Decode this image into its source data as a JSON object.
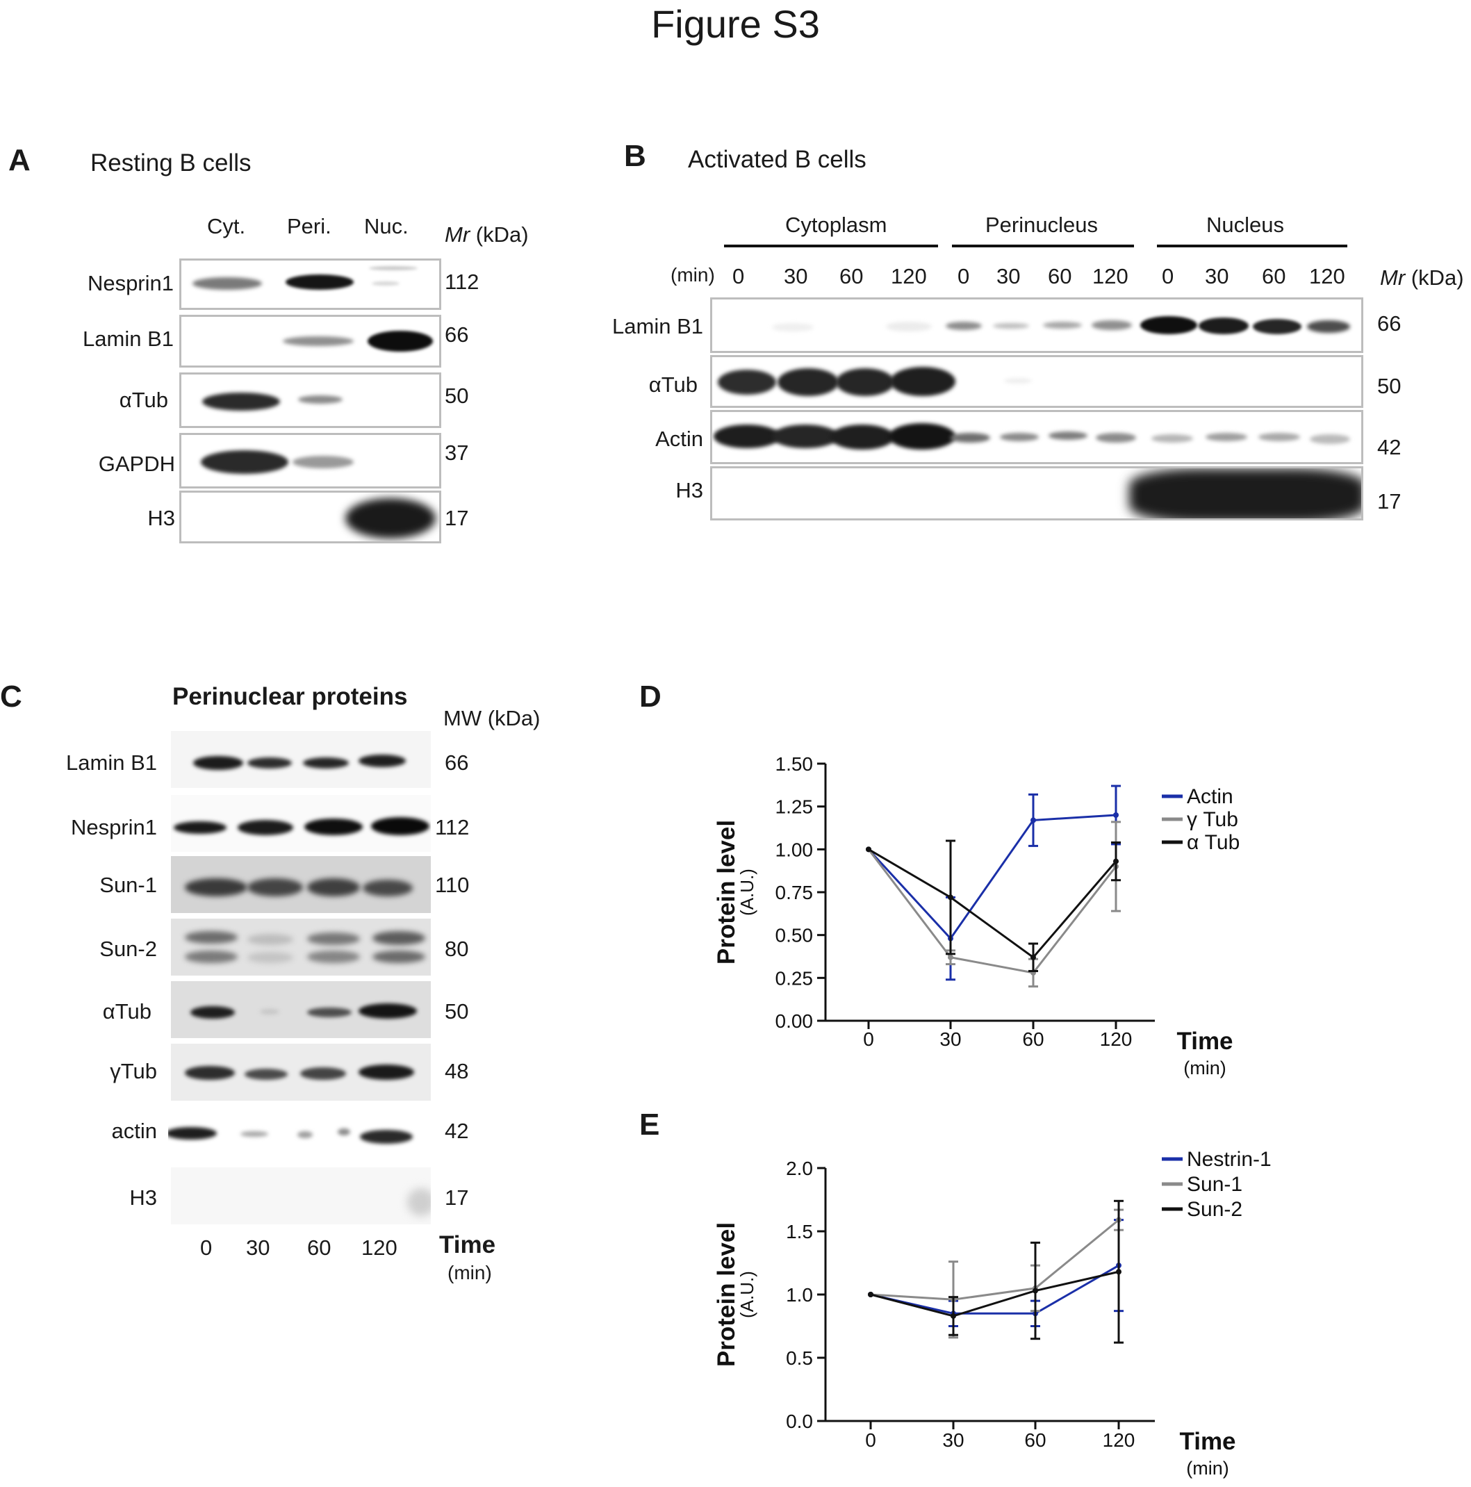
{
  "figure_title": "Figure S3",
  "panel_a": {
    "letter": "A",
    "title": "Resting B cells",
    "columns": [
      "Cyt.",
      "Peri.",
      "Nuc."
    ],
    "mr_label_italic": "Mr",
    "mr_label_unit": " (kDa)",
    "rows": [
      {
        "protein": "Nesprin1",
        "mw": "112"
      },
      {
        "protein": "Lamin B1",
        "mw": "66"
      },
      {
        "protein": "αTub",
        "mw": "50"
      },
      {
        "protein": "GAPDH",
        "mw": "37"
      },
      {
        "protein": "H3",
        "mw": "17"
      }
    ]
  },
  "panel_b": {
    "letter": "B",
    "title": "Activated B cells",
    "groups": [
      "Cytoplasm",
      "Perinucleus",
      "Nucleus"
    ],
    "time_unit": "(min)",
    "times": [
      "0",
      "30",
      "60",
      "120",
      "0",
      "30",
      "60",
      "120",
      "0",
      "30",
      "60",
      "120"
    ],
    "mr_label_italic": "Mr",
    "mr_label_unit": " (kDa)",
    "rows": [
      {
        "protein": "Lamin B1",
        "mw": "66"
      },
      {
        "protein": "αTub",
        "mw": "50"
      },
      {
        "protein": "Actin",
        "mw": "42"
      },
      {
        "protein": "H3",
        "mw": "17"
      }
    ]
  },
  "panel_c": {
    "letter": "C",
    "title": "Perinuclear proteins",
    "mw_label": "MW (kDa)",
    "rows": [
      {
        "protein": "Lamin B1",
        "mw": "66"
      },
      {
        "protein": "Nesprin1",
        "mw": "112"
      },
      {
        "protein": "Sun-1",
        "mw": "110"
      },
      {
        "protein": "Sun-2",
        "mw": "80"
      },
      {
        "protein": "αTub",
        "mw": "50"
      },
      {
        "protein": "γTub",
        "mw": "48"
      },
      {
        "protein": "actin",
        "mw": "42"
      },
      {
        "protein": "H3",
        "mw": "17"
      }
    ],
    "times": [
      "0",
      "30",
      "60",
      "120"
    ],
    "time_label": "Time",
    "time_unit": "(min)"
  },
  "chart_data": [
    {
      "panel": "D",
      "type": "line",
      "ylabel": "Protein level",
      "ylabel_unit": "(A.U.)",
      "xlabel": "Time",
      "xlabel_unit": "(min)",
      "x": [
        0,
        30,
        60,
        120
      ],
      "x_tick_labels": [
        "0",
        "30",
        "60",
        "120"
      ],
      "ylim": [
        0,
        1.5
      ],
      "y_ticks": [
        0.0,
        0.25,
        0.5,
        0.75,
        1.0,
        1.25,
        1.5
      ],
      "y_tick_labels": [
        "0.00",
        "0.25",
        "0.50",
        "0.75",
        "1.00",
        "1.25",
        "1.50"
      ],
      "legend_position": "top-right",
      "series": [
        {
          "name": "Actin",
          "color": "#1a2fa8",
          "values": [
            1.0,
            0.48,
            1.17,
            1.2
          ],
          "errors": [
            0,
            0.24,
            0.15,
            0.17
          ]
        },
        {
          "name": "γ Tub",
          "color": "#8a8a8a",
          "values": [
            1.0,
            0.37,
            0.28,
            0.9
          ],
          "errors": [
            0,
            0.04,
            0.08,
            0.26
          ]
        },
        {
          "name": "α Tub",
          "color": "#111111",
          "values": [
            1.0,
            0.72,
            0.37,
            0.93
          ],
          "errors": [
            0,
            0.33,
            0.08,
            0.11
          ]
        }
      ]
    },
    {
      "panel": "E",
      "type": "line",
      "ylabel": "Protein level",
      "ylabel_unit": "(A.U.)",
      "xlabel": "Time",
      "xlabel_unit": "(min)",
      "x": [
        0,
        30,
        60,
        120
      ],
      "x_tick_labels": [
        "0",
        "30",
        "60",
        "120"
      ],
      "ylim": [
        0,
        2.0
      ],
      "y_ticks": [
        0.0,
        0.5,
        1.0,
        1.5,
        2.0
      ],
      "y_tick_labels": [
        "0.0",
        "0.5",
        "1.0",
        "1.5",
        "2.0"
      ],
      "legend_position": "top-right",
      "series": [
        {
          "name": "Nestrin-1",
          "color": "#1a2fa8",
          "values": [
            1.0,
            0.85,
            0.85,
            1.23
          ],
          "errors": [
            0,
            0.1,
            0.1,
            0.36
          ]
        },
        {
          "name": "Sun-1",
          "color": "#8a8a8a",
          "values": [
            1.0,
            0.96,
            1.05,
            1.59
          ],
          "errors": [
            0,
            0.3,
            0.18,
            0.08
          ]
        },
        {
          "name": "Sun-2",
          "color": "#111111",
          "values": [
            1.0,
            0.83,
            1.03,
            1.18
          ],
          "errors": [
            0,
            0.15,
            0.38,
            0.56
          ]
        }
      ]
    }
  ]
}
